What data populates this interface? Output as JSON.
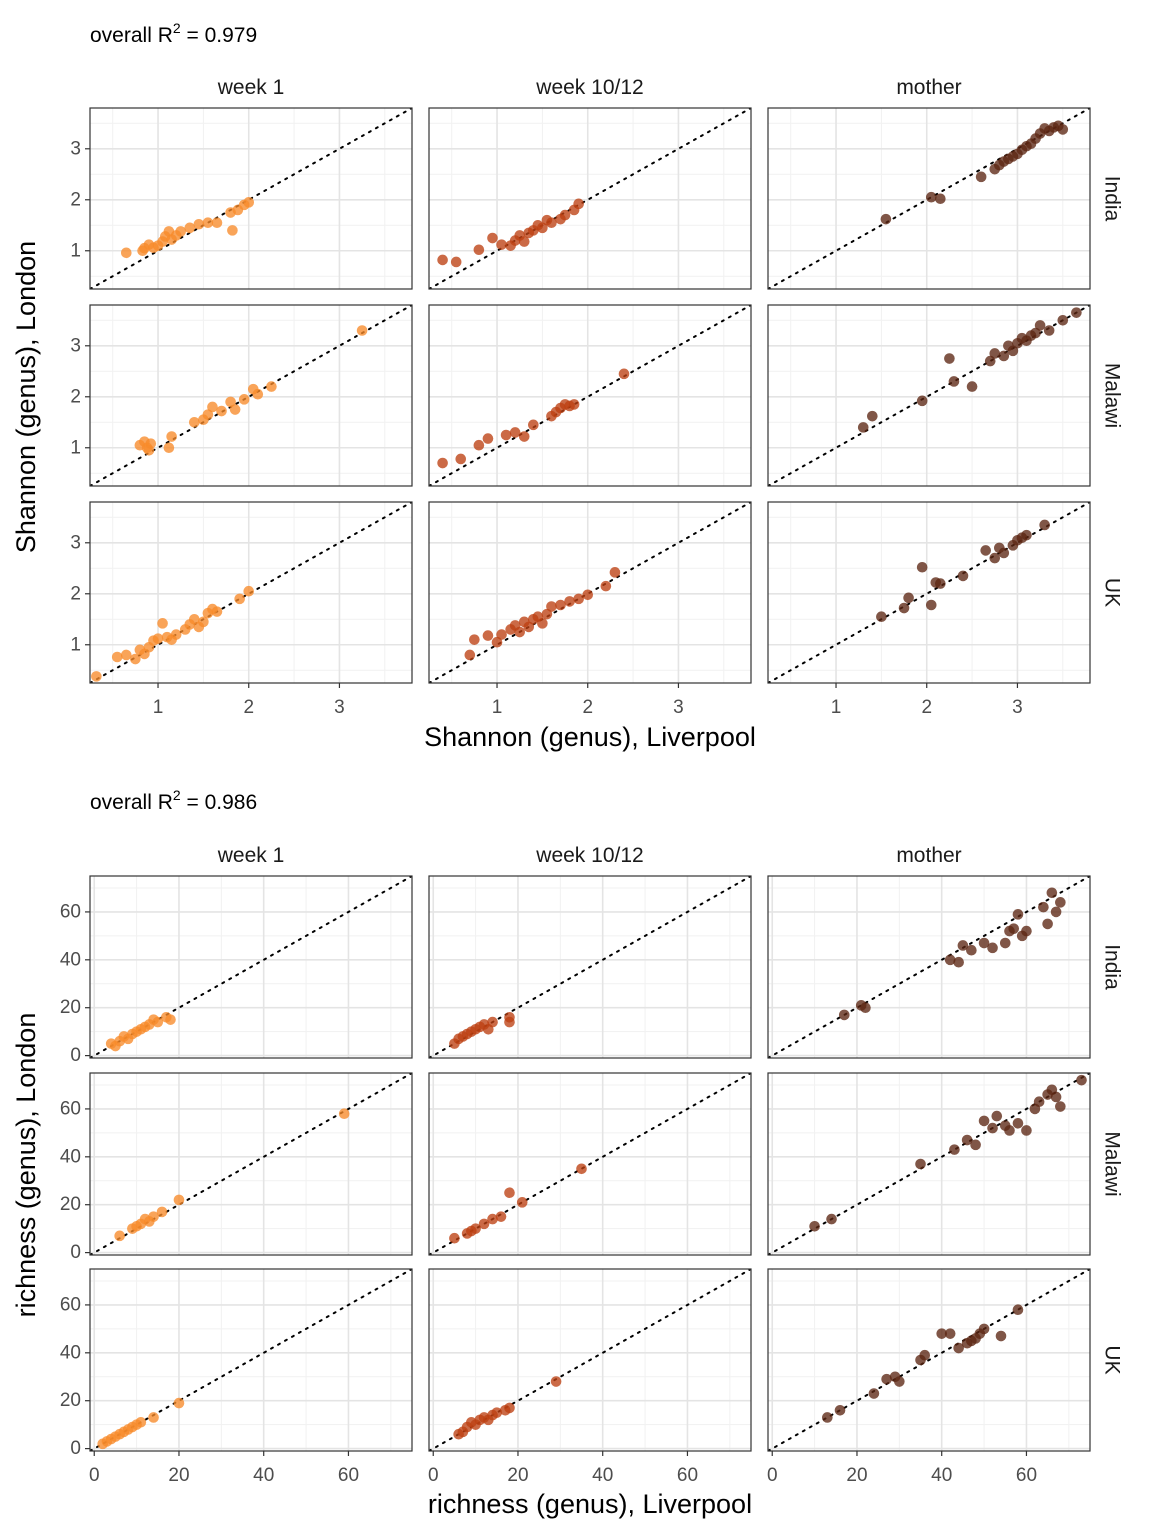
{
  "colors": {
    "week 1": "#F78B2A",
    "week 10/12": "#BD4012",
    "mother": "#5C2713"
  },
  "chart_data": [
    {
      "type": "scatter",
      "title_prefix": "overall R",
      "title_sup": "2",
      "title_suffix": " =  0.979",
      "xlabel": "Shannon (genus), Liverpool",
      "ylabel": "Shannon (genus), London",
      "columns": [
        "week 1",
        "week 10/12",
        "mother"
      ],
      "rows": [
        "India",
        "Malawi",
        "UK"
      ],
      "xlim": [
        0.25,
        3.8
      ],
      "ylim": [
        0.25,
        3.8
      ],
      "xticks": [
        1,
        2,
        3
      ],
      "yticks": [
        1,
        2,
        3
      ],
      "minor_ticks": [
        0.5,
        1.5,
        2.5,
        3.5
      ],
      "reference_line": "y = x",
      "panels": {
        "India|week 1": [
          [
            0.65,
            0.96
          ],
          [
            0.83,
            1.0
          ],
          [
            0.85,
            1.05
          ],
          [
            0.9,
            1.12
          ],
          [
            0.95,
            1.06
          ],
          [
            1.0,
            1.1
          ],
          [
            1.05,
            1.18
          ],
          [
            1.08,
            1.28
          ],
          [
            1.12,
            1.38
          ],
          [
            1.15,
            1.22
          ],
          [
            1.2,
            1.3
          ],
          [
            1.25,
            1.38
          ],
          [
            1.35,
            1.45
          ],
          [
            1.45,
            1.52
          ],
          [
            1.55,
            1.55
          ],
          [
            1.65,
            1.55
          ],
          [
            1.8,
            1.75
          ],
          [
            1.82,
            1.4
          ],
          [
            1.88,
            1.8
          ],
          [
            1.95,
            1.9
          ],
          [
            2.0,
            1.95
          ]
        ],
        "India|week 10/12": [
          [
            0.4,
            0.82
          ],
          [
            0.55,
            0.78
          ],
          [
            0.8,
            1.02
          ],
          [
            0.95,
            1.25
          ],
          [
            1.05,
            1.12
          ],
          [
            1.15,
            1.1
          ],
          [
            1.2,
            1.2
          ],
          [
            1.25,
            1.3
          ],
          [
            1.3,
            1.18
          ],
          [
            1.35,
            1.35
          ],
          [
            1.4,
            1.4
          ],
          [
            1.45,
            1.5
          ],
          [
            1.5,
            1.45
          ],
          [
            1.55,
            1.6
          ],
          [
            1.6,
            1.55
          ],
          [
            1.7,
            1.62
          ],
          [
            1.75,
            1.7
          ],
          [
            1.85,
            1.8
          ],
          [
            1.9,
            1.92
          ]
        ],
        "India|mother": [
          [
            1.55,
            1.62
          ],
          [
            2.05,
            2.05
          ],
          [
            2.15,
            2.02
          ],
          [
            2.6,
            2.45
          ],
          [
            2.75,
            2.6
          ],
          [
            2.8,
            2.68
          ],
          [
            2.85,
            2.75
          ],
          [
            2.9,
            2.8
          ],
          [
            2.95,
            2.85
          ],
          [
            3.0,
            2.9
          ],
          [
            3.05,
            2.98
          ],
          [
            3.1,
            3.05
          ],
          [
            3.15,
            3.1
          ],
          [
            3.2,
            3.2
          ],
          [
            3.25,
            3.3
          ],
          [
            3.3,
            3.4
          ],
          [
            3.35,
            3.35
          ],
          [
            3.4,
            3.42
          ],
          [
            3.45,
            3.45
          ],
          [
            3.5,
            3.38
          ]
        ],
        "Malawi|week 1": [
          [
            0.8,
            1.05
          ],
          [
            0.85,
            1.12
          ],
          [
            0.88,
            1.0
          ],
          [
            0.9,
            0.95
          ],
          [
            0.92,
            1.08
          ],
          [
            1.12,
            1.0
          ],
          [
            1.15,
            1.22
          ],
          [
            1.4,
            1.5
          ],
          [
            1.5,
            1.55
          ],
          [
            1.55,
            1.65
          ],
          [
            1.6,
            1.8
          ],
          [
            1.7,
            1.72
          ],
          [
            1.8,
            1.9
          ],
          [
            1.85,
            1.75
          ],
          [
            1.95,
            1.95
          ],
          [
            2.05,
            2.15
          ],
          [
            2.1,
            2.05
          ],
          [
            2.25,
            2.2
          ],
          [
            3.25,
            3.3
          ]
        ],
        "Malawi|week 10/12": [
          [
            0.4,
            0.7
          ],
          [
            0.6,
            0.78
          ],
          [
            0.8,
            1.05
          ],
          [
            0.9,
            1.18
          ],
          [
            1.1,
            1.25
          ],
          [
            1.2,
            1.3
          ],
          [
            1.3,
            1.22
          ],
          [
            1.4,
            1.45
          ],
          [
            1.6,
            1.62
          ],
          [
            1.65,
            1.7
          ],
          [
            1.7,
            1.78
          ],
          [
            1.75,
            1.85
          ],
          [
            1.8,
            1.82
          ],
          [
            1.85,
            1.85
          ],
          [
            2.4,
            2.45
          ]
        ],
        "Malawi|mother": [
          [
            1.3,
            1.4
          ],
          [
            1.4,
            1.62
          ],
          [
            1.95,
            1.92
          ],
          [
            2.25,
            2.75
          ],
          [
            2.3,
            2.3
          ],
          [
            2.5,
            2.2
          ],
          [
            2.7,
            2.7
          ],
          [
            2.75,
            2.85
          ],
          [
            2.85,
            2.8
          ],
          [
            2.9,
            3.0
          ],
          [
            2.95,
            2.9
          ],
          [
            3.0,
            3.05
          ],
          [
            3.05,
            3.15
          ],
          [
            3.1,
            3.1
          ],
          [
            3.15,
            3.2
          ],
          [
            3.2,
            3.25
          ],
          [
            3.25,
            3.4
          ],
          [
            3.35,
            3.3
          ],
          [
            3.5,
            3.5
          ],
          [
            3.65,
            3.65
          ]
        ],
        "UK|week 1": [
          [
            0.32,
            0.38
          ],
          [
            0.55,
            0.76
          ],
          [
            0.65,
            0.8
          ],
          [
            0.75,
            0.72
          ],
          [
            0.8,
            0.9
          ],
          [
            0.85,
            0.82
          ],
          [
            0.9,
            0.95
          ],
          [
            0.95,
            1.08
          ],
          [
            1.0,
            1.12
          ],
          [
            1.05,
            1.42
          ],
          [
            1.1,
            1.15
          ],
          [
            1.15,
            1.1
          ],
          [
            1.2,
            1.2
          ],
          [
            1.3,
            1.3
          ],
          [
            1.35,
            1.4
          ],
          [
            1.4,
            1.5
          ],
          [
            1.45,
            1.35
          ],
          [
            1.5,
            1.45
          ],
          [
            1.55,
            1.62
          ],
          [
            1.6,
            1.7
          ],
          [
            1.65,
            1.65
          ],
          [
            1.9,
            1.9
          ],
          [
            2.0,
            2.05
          ]
        ],
        "UK|week 10/12": [
          [
            0.7,
            0.8
          ],
          [
            0.75,
            1.1
          ],
          [
            0.9,
            1.18
          ],
          [
            1.0,
            1.05
          ],
          [
            1.05,
            1.2
          ],
          [
            1.15,
            1.3
          ],
          [
            1.2,
            1.38
          ],
          [
            1.25,
            1.25
          ],
          [
            1.3,
            1.45
          ],
          [
            1.35,
            1.35
          ],
          [
            1.4,
            1.5
          ],
          [
            1.45,
            1.55
          ],
          [
            1.5,
            1.42
          ],
          [
            1.55,
            1.6
          ],
          [
            1.6,
            1.75
          ],
          [
            1.7,
            1.78
          ],
          [
            1.8,
            1.85
          ],
          [
            1.9,
            1.9
          ],
          [
            2.0,
            1.98
          ],
          [
            2.2,
            2.15
          ],
          [
            2.3,
            2.42
          ]
        ],
        "UK|mother": [
          [
            1.5,
            1.55
          ],
          [
            1.75,
            1.72
          ],
          [
            1.8,
            1.92
          ],
          [
            1.95,
            2.52
          ],
          [
            2.05,
            1.78
          ],
          [
            2.1,
            2.22
          ],
          [
            2.15,
            2.2
          ],
          [
            2.4,
            2.35
          ],
          [
            2.65,
            2.85
          ],
          [
            2.75,
            2.7
          ],
          [
            2.8,
            2.9
          ],
          [
            2.85,
            2.8
          ],
          [
            2.95,
            2.95
          ],
          [
            3.0,
            3.05
          ],
          [
            3.05,
            3.1
          ],
          [
            3.1,
            3.15
          ],
          [
            3.3,
            3.35
          ]
        ]
      }
    },
    {
      "type": "scatter",
      "title_prefix": "overall R",
      "title_sup": "2",
      "title_suffix": " =  0.986",
      "xlabel": "richness (genus), Liverpool",
      "ylabel": "richness (genus), London",
      "columns": [
        "week 1",
        "week 10/12",
        "mother"
      ],
      "rows": [
        "India",
        "Malawi",
        "UK"
      ],
      "xlim": [
        -1,
        75
      ],
      "ylim": [
        -1,
        75
      ],
      "xticks": [
        0,
        20,
        40,
        60
      ],
      "yticks": [
        0,
        20,
        40,
        60
      ],
      "minor_ticks": [
        10,
        30,
        50,
        70
      ],
      "reference_line": "y = x",
      "panels": {
        "India|week 1": [
          [
            4,
            5
          ],
          [
            5,
            4
          ],
          [
            6,
            6
          ],
          [
            7,
            8
          ],
          [
            8,
            7
          ],
          [
            9,
            9
          ],
          [
            10,
            10
          ],
          [
            11,
            11
          ],
          [
            12,
            12
          ],
          [
            13,
            13
          ],
          [
            14,
            15
          ],
          [
            15,
            14
          ],
          [
            17,
            16
          ],
          [
            18,
            15
          ]
        ],
        "India|week 10/12": [
          [
            5,
            5
          ],
          [
            6,
            7
          ],
          [
            7,
            8
          ],
          [
            8,
            9
          ],
          [
            9,
            10
          ],
          [
            10,
            11
          ],
          [
            11,
            12
          ],
          [
            12,
            13
          ],
          [
            13,
            11
          ],
          [
            14,
            14
          ],
          [
            18,
            16
          ],
          [
            18,
            14
          ]
        ],
        "India|mother": [
          [
            17,
            17
          ],
          [
            21,
            21
          ],
          [
            22,
            20
          ],
          [
            42,
            40
          ],
          [
            44,
            39
          ],
          [
            45,
            46
          ],
          [
            47,
            44
          ],
          [
            50,
            47
          ],
          [
            52,
            45
          ],
          [
            55,
            47
          ],
          [
            56,
            52
          ],
          [
            57,
            53
          ],
          [
            58,
            59
          ],
          [
            59,
            50
          ],
          [
            60,
            52
          ],
          [
            64,
            62
          ],
          [
            65,
            55
          ],
          [
            66,
            68
          ],
          [
            67,
            60
          ],
          [
            68,
            64
          ]
        ],
        "Malawi|week 1": [
          [
            6,
            7
          ],
          [
            9,
            10
          ],
          [
            10,
            11
          ],
          [
            11,
            12
          ],
          [
            12,
            14
          ],
          [
            13,
            13
          ],
          [
            14,
            15
          ],
          [
            16,
            17
          ],
          [
            20,
            22
          ],
          [
            59,
            58
          ]
        ],
        "Malawi|week 10/12": [
          [
            5,
            6
          ],
          [
            8,
            8
          ],
          [
            9,
            9
          ],
          [
            10,
            10
          ],
          [
            12,
            12
          ],
          [
            14,
            14
          ],
          [
            16,
            15
          ],
          [
            18,
            25
          ],
          [
            21,
            21
          ],
          [
            35,
            35
          ]
        ],
        "Malawi|mother": [
          [
            10,
            11
          ],
          [
            14,
            14
          ],
          [
            35,
            37
          ],
          [
            43,
            43
          ],
          [
            46,
            47
          ],
          [
            48,
            45
          ],
          [
            50,
            55
          ],
          [
            52,
            52
          ],
          [
            53,
            57
          ],
          [
            55,
            53
          ],
          [
            56,
            51
          ],
          [
            58,
            54
          ],
          [
            60,
            51
          ],
          [
            62,
            60
          ],
          [
            63,
            63
          ],
          [
            65,
            66
          ],
          [
            66,
            68
          ],
          [
            67,
            65
          ],
          [
            68,
            61
          ],
          [
            73,
            72
          ]
        ],
        "UK|week 1": [
          [
            2,
            2
          ],
          [
            3,
            3
          ],
          [
            4,
            4
          ],
          [
            5,
            5
          ],
          [
            6,
            6
          ],
          [
            7,
            7
          ],
          [
            8,
            8
          ],
          [
            9,
            9
          ],
          [
            10,
            10
          ],
          [
            11,
            11
          ],
          [
            14,
            13
          ],
          [
            20,
            19
          ]
        ],
        "UK|week 10/12": [
          [
            6,
            6
          ],
          [
            7,
            7
          ],
          [
            8,
            9
          ],
          [
            9,
            11
          ],
          [
            10,
            10
          ],
          [
            11,
            12
          ],
          [
            12,
            13
          ],
          [
            13,
            12
          ],
          [
            14,
            14
          ],
          [
            15,
            15
          ],
          [
            17,
            16
          ],
          [
            18,
            17
          ],
          [
            29,
            28
          ]
        ],
        "UK|mother": [
          [
            13,
            13
          ],
          [
            16,
            16
          ],
          [
            24,
            23
          ],
          [
            27,
            29
          ],
          [
            29,
            30
          ],
          [
            30,
            28
          ],
          [
            35,
            37
          ],
          [
            36,
            39
          ],
          [
            40,
            48
          ],
          [
            42,
            48
          ],
          [
            44,
            42
          ],
          [
            46,
            44
          ],
          [
            47,
            45
          ],
          [
            48,
            46
          ],
          [
            49,
            48
          ],
          [
            50,
            50
          ],
          [
            54,
            47
          ],
          [
            58,
            58
          ]
        ]
      }
    }
  ]
}
